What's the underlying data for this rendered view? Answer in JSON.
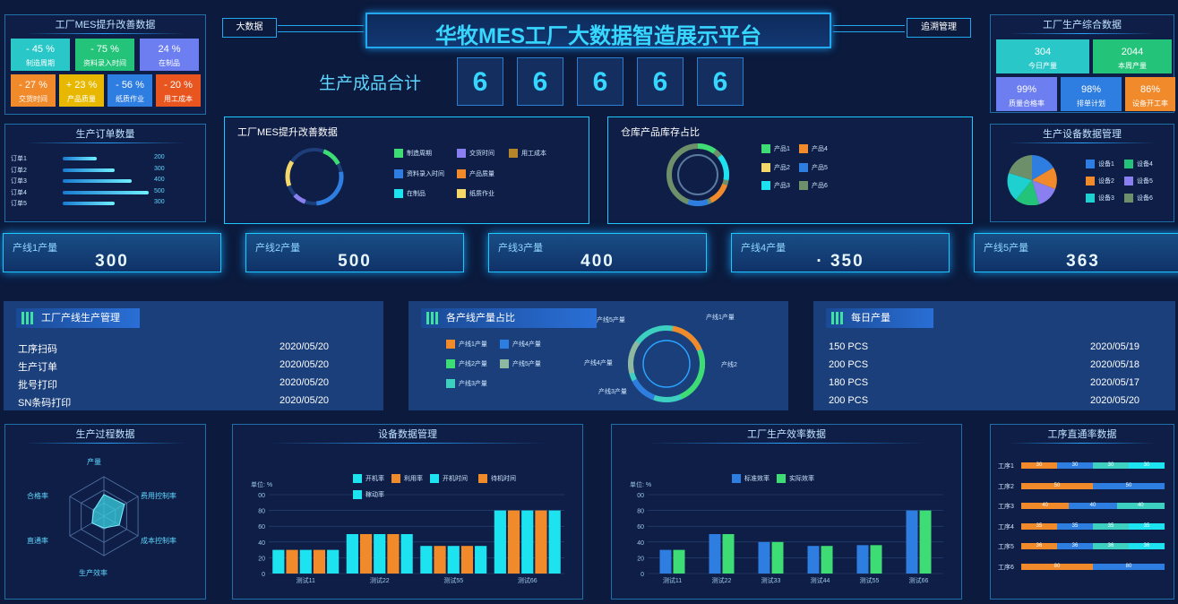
{
  "header": {
    "title": "华牧MES工厂大数据智造展示平台",
    "left_btn": "大数据",
    "right_btn": "追溯管理"
  },
  "improve": {
    "title": "工厂MES提升改善数据",
    "tiles": [
      {
        "value": "- 45 %",
        "label": "制造周期",
        "color": "#29c7c7"
      },
      {
        "value": "- 75 %",
        "label": "资料录入时间",
        "color": "#23c47a"
      },
      {
        "value": "24 %",
        "label": "在制品",
        "color": "#6d7ff0"
      },
      {
        "value": "- 27 %",
        "label": "交货时间",
        "color": "#f08a2a"
      },
      {
        "value": "+ 23 %",
        "label": "产品质量",
        "color": "#e8b800"
      },
      {
        "value": "- 56 %",
        "label": "纸质作业",
        "color": "#2e7de0"
      },
      {
        "value": "- 20 %",
        "label": "用工成本",
        "color": "#e8551e"
      }
    ]
  },
  "production_total": {
    "label": "生产成品合计",
    "digits": [
      "6",
      "6",
      "6",
      "6",
      "6"
    ]
  },
  "factory_prod": {
    "title": "工厂生产综合数据",
    "tiles": [
      {
        "value": "304",
        "label": "今日产量",
        "color": "#29c7c7"
      },
      {
        "value": "2044",
        "label": "本周产量",
        "color": "#23c47a"
      },
      {
        "value": "99%",
        "label": "质量合格率",
        "color": "#6d7ff0"
      },
      {
        "value": "98%",
        "label": "排单计划",
        "color": "#2e7de0"
      },
      {
        "value": "86%",
        "label": "设备开工率",
        "color": "#f08a2a"
      }
    ]
  },
  "orders": {
    "title": "生产订单数量",
    "items": [
      {
        "label": "订单1",
        "value": 200
      },
      {
        "label": "订单2",
        "value": 300
      },
      {
        "label": "订单3",
        "value": 400
      },
      {
        "label": "订单4",
        "value": 500
      },
      {
        "label": "订单5",
        "value": 300
      }
    ]
  },
  "improve_donut": {
    "title": "工厂MES提升改善数据",
    "legend": [
      {
        "label": "制造周期",
        "color": "#3ddc74"
      },
      {
        "label": "交货时间",
        "color": "#8a7ff0"
      },
      {
        "label": "用工成本",
        "color": "#b8862a"
      },
      {
        "label": "资料录入时间",
        "color": "#2e7de0"
      },
      {
        "label": "产品质量",
        "color": "#f08a2a"
      },
      {
        "label": "在制品",
        "color": "#1de2f0"
      },
      {
        "label": "纸质作业",
        "color": "#f5d86a"
      }
    ]
  },
  "warehouse": {
    "title": "仓库产品库存占比",
    "legend": [
      {
        "label": "产品1",
        "color": "#3ddc74"
      },
      {
        "label": "产品4",
        "color": "#f08a2a"
      },
      {
        "label": "产品2",
        "color": "#f5d86a"
      },
      {
        "label": "产品5",
        "color": "#2e7de0"
      },
      {
        "label": "产品3",
        "color": "#1de2f0"
      },
      {
        "label": "产品6",
        "color": "#6d8f6a"
      }
    ]
  },
  "equipment_mgmt": {
    "title": "生产设备数据管理",
    "legend": [
      {
        "label": "设备1",
        "color": "#2e7de0"
      },
      {
        "label": "设备4",
        "color": "#23c47a"
      },
      {
        "label": "设备2",
        "color": "#f08a2a"
      },
      {
        "label": "设备5",
        "color": "#8a7ff0"
      },
      {
        "label": "设备3",
        "color": "#1fd0d0"
      },
      {
        "label": "设备6",
        "color": "#6d8f6a"
      }
    ]
  },
  "lines": [
    {
      "name": "产线1产量",
      "value": "300"
    },
    {
      "name": "产线2产量",
      "value": "500"
    },
    {
      "name": "产线3产量",
      "value": "400"
    },
    {
      "name": "产线4产量",
      "value": "· 350"
    },
    {
      "name": "产线5产量",
      "value": "363"
    }
  ],
  "line_mgmt": {
    "title": "工厂产线生产管理",
    "rows": [
      {
        "name": "工序扫码",
        "date": "2020/05/20"
      },
      {
        "name": "生产订单",
        "date": "2020/05/20"
      },
      {
        "name": "批号打印",
        "date": "2020/05/20"
      },
      {
        "name": "SN条码打印",
        "date": "2020/05/20"
      }
    ]
  },
  "line_share": {
    "title": "各产线产量占比",
    "legend": [
      {
        "label": "产线1产量",
        "color": "#f08a2a"
      },
      {
        "label": "产线4产量",
        "color": "#2e7de0"
      },
      {
        "label": "产线2产量",
        "color": "#3ddc74"
      },
      {
        "label": "产线5产量",
        "color": "#8fb8a0"
      },
      {
        "label": "产线3产量",
        "color": "#3dcfc0"
      }
    ],
    "callouts": [
      "产线5产量",
      "产线1产量",
      "产线4产量",
      "产线2",
      "产线3产量"
    ]
  },
  "daily": {
    "title": "每日产量",
    "rows": [
      {
        "qty": "150 PCS",
        "date": "2020/05/19"
      },
      {
        "qty": "200 PCS",
        "date": "2020/05/18"
      },
      {
        "qty": "180 PCS",
        "date": "2020/05/17"
      },
      {
        "qty": "200 PCS",
        "date": "2020/05/20"
      }
    ]
  },
  "process": {
    "title": "生产过程数据",
    "axes": [
      "产量",
      "费用控制率",
      "成本控制率",
      "生产效率",
      "直通率",
      "合格率"
    ],
    "values": [
      0.55,
      0.6,
      0.45,
      0.3,
      0.35,
      0.3
    ]
  },
  "equip_data": {
    "title": "设备数据管理",
    "unit": "单位: %"
  },
  "efficiency": {
    "title": "工厂生产效率数据",
    "unit": "单位: %"
  },
  "straight": {
    "title": "工序直通率数据",
    "rows": [
      {
        "label": "工序1",
        "values": [
          "30",
          "30",
          "30",
          "30"
        ]
      },
      {
        "label": "工序2",
        "values": [
          "50",
          "50"
        ]
      },
      {
        "label": "工序3",
        "values": [
          "40",
          "40",
          "40"
        ]
      },
      {
        "label": "工序4",
        "values": [
          "35",
          "35",
          "35",
          "35"
        ]
      },
      {
        "label": "工序5",
        "values": [
          "36",
          "36",
          "36",
          "36"
        ]
      },
      {
        "label": "工序6",
        "values": [
          "80",
          "80"
        ]
      }
    ]
  },
  "chart_data": [
    {
      "type": "bar",
      "title": "设备数据管理",
      "ylabel": "单位: %",
      "categories": [
        "测试11",
        "测试22",
        "测试55",
        "测试66"
      ],
      "series": [
        {
          "name": "开机率",
          "color": "#1de2f0",
          "values": [
            30,
            50,
            35,
            80
          ]
        },
        {
          "name": "利用率",
          "color": "#f08a2a",
          "values": [
            30,
            50,
            35,
            80
          ]
        },
        {
          "name": "开机时间",
          "color": "#1de2f0",
          "values": [
            30,
            50,
            35,
            80
          ]
        },
        {
          "name": "待机时间",
          "color": "#f08a2a",
          "values": [
            30,
            50,
            35,
            80
          ]
        },
        {
          "name": "稼动率",
          "color": "#1de2f0",
          "values": [
            30,
            50,
            35,
            80
          ]
        }
      ]
    },
    {
      "type": "bar",
      "title": "工厂生产效率数据",
      "ylabel": "单位: %",
      "categories": [
        "测试11",
        "测试22",
        "测试33",
        "测试44",
        "测试55",
        "测试66"
      ],
      "series": [
        {
          "name": "标准效率",
          "color": "#2e7de0",
          "values": [
            30,
            50,
            40,
            35,
            36,
            80
          ]
        },
        {
          "name": "实际效率",
          "color": "#3ddc74",
          "values": [
            30,
            50,
            40,
            35,
            36,
            80
          ]
        }
      ]
    }
  ]
}
